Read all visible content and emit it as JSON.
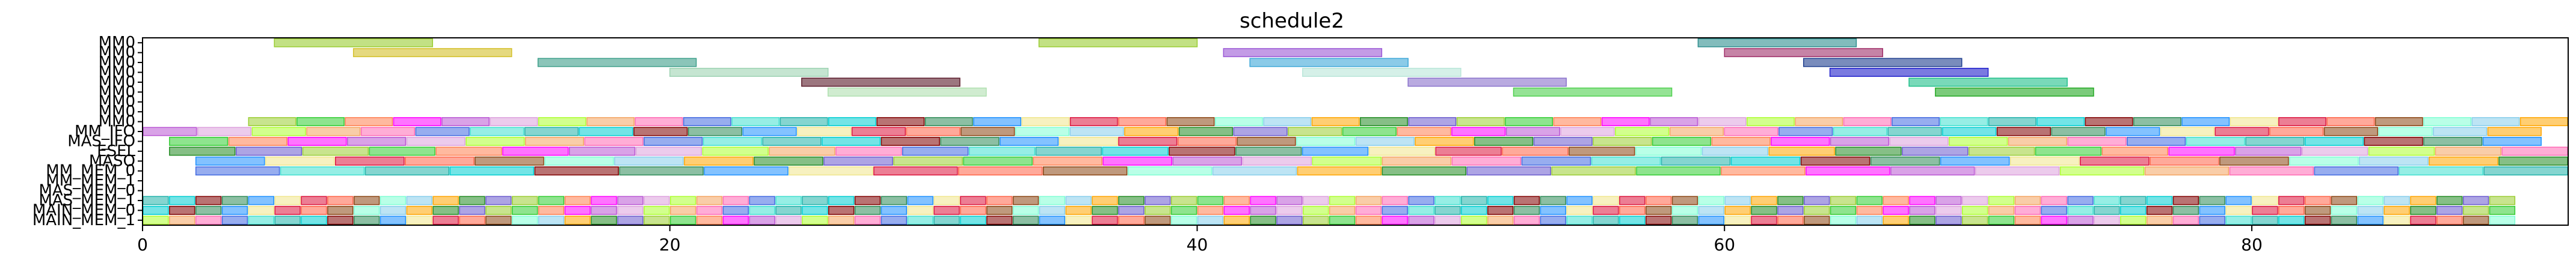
{
  "chart_data": {
    "type": "gantt",
    "title": "schedule2",
    "xlabel": "",
    "ylabel": "",
    "xlim": [
      0,
      92
    ],
    "x_ticks": [
      0,
      20,
      40,
      60,
      80
    ],
    "grid": false,
    "legend": "none",
    "rows": [
      "MM0",
      "MM0",
      "MM0",
      "MM0",
      "MM0",
      "MM0",
      "MM0",
      "MM0",
      "MM0",
      "MM_IFO",
      "MAS_IFO",
      "ESEL",
      "MASO",
      "MM_MEM_0",
      "MM_MEM_1",
      "MAS_MEM_0",
      "MAS_MEM_1",
      "MAIN_MEM_0",
      "MAIN_MEM_1"
    ],
    "palette": [
      "#9acd32",
      "#ff6347",
      "#20b2aa",
      "#ba55d3",
      "#ffa500",
      "#1e90ff",
      "#ff69b4",
      "#32cd32",
      "#8b4513",
      "#00ced1",
      "#dda0dd",
      "#228b22",
      "#f0e68c",
      "#4169e1",
      "#ff7f50",
      "#7fffd4",
      "#800000",
      "#adff2f",
      "#6a5acd",
      "#dc143c",
      "#40e0d0",
      "#ff00ff",
      "#87ceeb",
      "#2e8b57",
      "#f4a460"
    ],
    "tasks": [
      {
        "row": 0,
        "start": 5,
        "end": 11,
        "color": "#9acd32"
      },
      {
        "row": 0,
        "start": 34,
        "end": 40,
        "color": "#9acd32"
      },
      {
        "row": 0,
        "start": 59,
        "end": 65,
        "color": "#2f8f8f"
      },
      {
        "row": 1,
        "start": 8,
        "end": 14,
        "color": "#d4c02a"
      },
      {
        "row": 1,
        "start": 41,
        "end": 47,
        "color": "#9b59d6"
      },
      {
        "row": 1,
        "start": 60,
        "end": 66,
        "color": "#a0306a"
      },
      {
        "row": 2,
        "start": 15,
        "end": 21,
        "color": "#3d9f8a"
      },
      {
        "row": 2,
        "start": 42,
        "end": 48,
        "color": "#3ea8d8"
      },
      {
        "row": 2,
        "start": 63,
        "end": 69,
        "color": "#1f3f8f"
      },
      {
        "row": 3,
        "start": 20,
        "end": 26,
        "color": "#9ed3b3"
      },
      {
        "row": 3,
        "start": 44,
        "end": 50,
        "color": "#b9e6d9"
      },
      {
        "row": 3,
        "start": 64,
        "end": 70,
        "color": "#2222cc"
      },
      {
        "row": 4,
        "start": 25,
        "end": 31,
        "color": "#5a1a2a"
      },
      {
        "row": 4,
        "start": 48,
        "end": 54,
        "color": "#8a72cc"
      },
      {
        "row": 4,
        "start": 67,
        "end": 73,
        "color": "#20c08a"
      },
      {
        "row": 5,
        "start": 26,
        "end": 32,
        "color": "#b0e0b0"
      },
      {
        "row": 5,
        "start": 52,
        "end": 58,
        "color": "#4fd04f"
      },
      {
        "row": 5,
        "start": 68,
        "end": 74,
        "color": "#23a823"
      }
    ],
    "strip_rows": [
      {
        "row": 8,
        "start": 4,
        "end": 92,
        "count": 48,
        "offset": 0
      },
      {
        "row": 9,
        "start": 0,
        "end": 91,
        "count": 44,
        "offset": 3
      },
      {
        "row": 10,
        "start": 1,
        "end": 91,
        "count": 40,
        "offset": 7
      },
      {
        "row": 11,
        "start": 1,
        "end": 92,
        "count": 36,
        "offset": 11
      },
      {
        "row": 12,
        "start": 2,
        "end": 92,
        "count": 34,
        "offset": 5
      },
      {
        "row": 13,
        "start": 2,
        "end": 92,
        "count": 28,
        "offset": 13
      },
      {
        "row": 16,
        "start": 0,
        "end": 90,
        "count": 90,
        "offset": 2
      },
      {
        "row": 17,
        "start": 0,
        "end": 90,
        "count": 90,
        "offset": 9
      },
      {
        "row": 18,
        "start": 0,
        "end": 90,
        "count": 90,
        "offset": 17
      }
    ]
  }
}
